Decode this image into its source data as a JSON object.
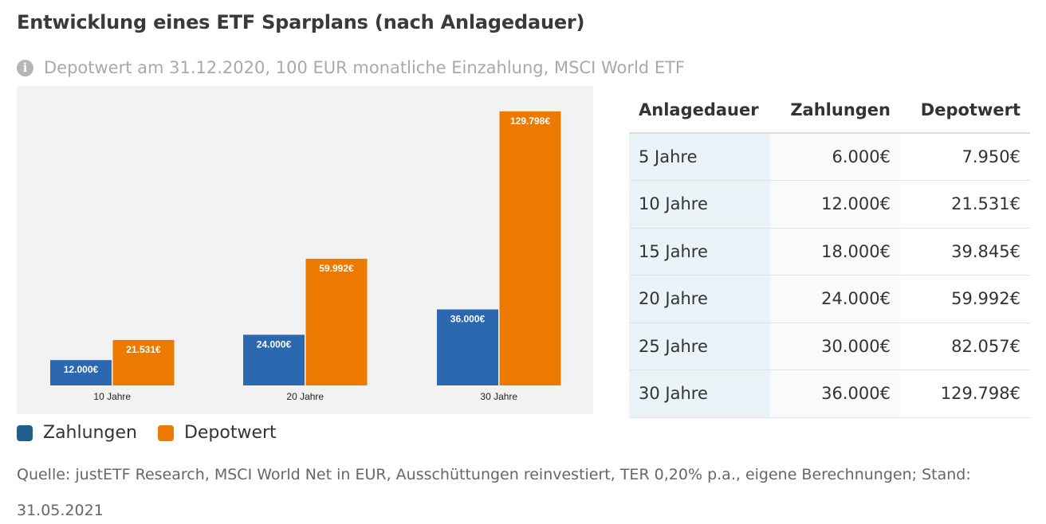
{
  "title": "Entwicklung eines ETF Sparplans (nach Anlagedauer)",
  "subtitle": "Depotwert am 31.12.2020, 100 EUR monatliche Einzahlung, MSCI World ETF",
  "info_icon": "info-icon",
  "colors": {
    "zahlungen": "#2b68b0",
    "depotwert": "#ec7a00",
    "legend_zahlungen": "#1f5f8b",
    "legend_depotwert": "#ec7a00"
  },
  "chart_data": {
    "type": "bar",
    "categories": [
      "10 Jahre",
      "20 Jahre",
      "30 Jahre"
    ],
    "series": [
      {
        "name": "Zahlungen",
        "values": [
          12000,
          24000,
          36000
        ],
        "labels": [
          "12.000€",
          "24.000€",
          "36.000€"
        ]
      },
      {
        "name": "Depotwert",
        "values": [
          21531,
          59992,
          129798
        ],
        "labels": [
          "21.531€",
          "59.992€",
          "129.798€"
        ]
      }
    ],
    "ylim": [
      0,
      135000
    ],
    "grid": false,
    "legend": "bottom-left"
  },
  "legend": [
    {
      "label": "Zahlungen"
    },
    {
      "label": "Depotwert"
    }
  ],
  "table": {
    "headers": [
      "Anlagedauer",
      "Zahlungen",
      "Depotwert"
    ],
    "rows": [
      [
        "5 Jahre",
        "6.000€",
        "7.950€"
      ],
      [
        "10 Jahre",
        "12.000€",
        "21.531€"
      ],
      [
        "15 Jahre",
        "18.000€",
        "39.845€"
      ],
      [
        "20 Jahre",
        "24.000€",
        "59.992€"
      ],
      [
        "25 Jahre",
        "30.000€",
        "82.057€"
      ],
      [
        "30 Jahre",
        "36.000€",
        "129.798€"
      ]
    ]
  },
  "source": "Quelle: justETF Research, MSCI World Net in EUR, Ausschüttungen reinvestiert, TER 0,20% p.a., eigene Berechnungen; Stand: 31.05.2021"
}
